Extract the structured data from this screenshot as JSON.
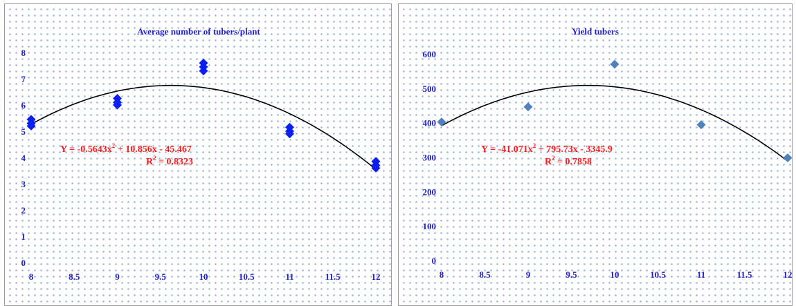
{
  "colors": {
    "axis_text": "#1f1fcc",
    "equation": "#ff1a1a",
    "trendline": "#000000",
    "left_markers": "#0a1ff0",
    "right_markers": "#4f81bd"
  },
  "chart_data": [
    {
      "type": "scatter",
      "title": "Average number of tubers/plant",
      "xlim": [
        8,
        12
      ],
      "ylim": [
        0,
        8
      ],
      "x_ticks": [
        "8",
        "8.5",
        "9",
        "9.5",
        "10",
        "10.5",
        "11",
        "11.5",
        "12"
      ],
      "y_ticks": [
        "0",
        "1",
        "2",
        "3",
        "4",
        "5",
        "6",
        "7",
        "8"
      ],
      "marker": "diamond",
      "points": [
        {
          "x": 8,
          "y": 5.2
        },
        {
          "x": 8,
          "y": 5.3
        },
        {
          "x": 8,
          "y": 5.45
        },
        {
          "x": 9,
          "y": 6.0
        },
        {
          "x": 9,
          "y": 6.1
        },
        {
          "x": 9,
          "y": 6.25
        },
        {
          "x": 10,
          "y": 7.3
        },
        {
          "x": 10,
          "y": 7.45
        },
        {
          "x": 10,
          "y": 7.6
        },
        {
          "x": 11,
          "y": 4.9
        },
        {
          "x": 11,
          "y": 5.0
        },
        {
          "x": 11,
          "y": 5.15
        },
        {
          "x": 12,
          "y": 3.6
        },
        {
          "x": 12,
          "y": 3.7
        },
        {
          "x": 12,
          "y": 3.85
        }
      ],
      "trendline": {
        "type": "polynomial",
        "a": -0.5643,
        "b": 10.856,
        "c": -45.467
      },
      "equation": {
        "prefix": "Y = -0.5643x",
        "sup": "2",
        "suffix": " + 10.856x - 45.467"
      },
      "r_squared": {
        "prefix": "R",
        "sup": "2",
        "suffix": " = 0.8323"
      }
    },
    {
      "type": "scatter",
      "title": "Yield tubers",
      "xlim": [
        8,
        12
      ],
      "ylim": [
        0,
        600
      ],
      "x_ticks": [
        "8",
        "8.5",
        "9",
        "9.5",
        "10",
        "10.5",
        "11",
        "11.5",
        "12"
      ],
      "y_ticks": [
        "0",
        "100",
        "200",
        "300",
        "400",
        "500",
        "600"
      ],
      "marker": "diamond",
      "points": [
        {
          "x": 8,
          "y": 402
        },
        {
          "x": 9,
          "y": 446
        },
        {
          "x": 10,
          "y": 570
        },
        {
          "x": 11,
          "y": 394
        },
        {
          "x": 12,
          "y": 298
        }
      ],
      "trendline": {
        "type": "polynomial",
        "a": -41.071,
        "b": 795.73,
        "c": -3345.9
      },
      "equation": {
        "prefix": "Y = -41.071x",
        "sup": "2",
        "suffix": " + 795.73x - 3345.9"
      },
      "r_squared": {
        "prefix": "R",
        "sup": "2",
        "suffix": " = 0.7858"
      }
    }
  ]
}
